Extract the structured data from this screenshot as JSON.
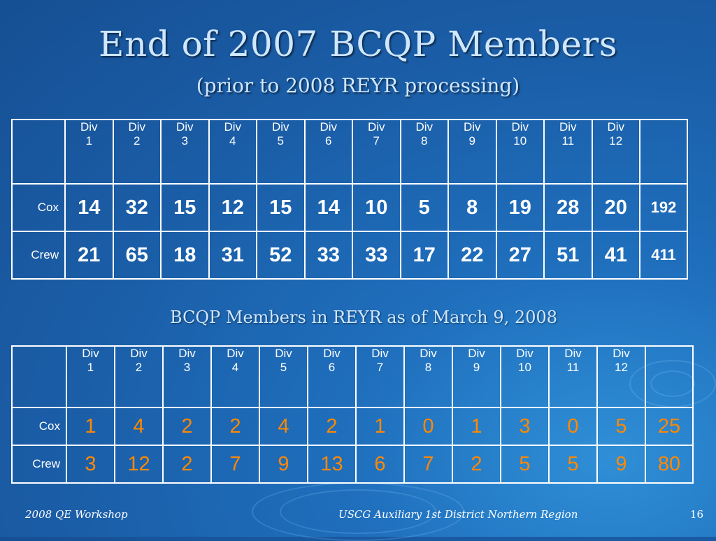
{
  "title": "End of 2007 BCQP Members",
  "subtitle": "(prior to 2008 REYR processing)",
  "table1": {
    "headers": [
      {
        "line1": "Div",
        "line2": "1"
      },
      {
        "line1": "Div",
        "line2": "2"
      },
      {
        "line1": "Div",
        "line2": "3"
      },
      {
        "line1": "Div",
        "line2": "4"
      },
      {
        "line1": "Div",
        "line2": "5"
      },
      {
        "line1": "Div",
        "line2": "6"
      },
      {
        "line1": "Div",
        "line2": "7"
      },
      {
        "line1": "Div",
        "line2": "8"
      },
      {
        "line1": "Div",
        "line2": "9"
      },
      {
        "line1": "Div",
        "line2": "10"
      },
      {
        "line1": "Div",
        "line2": "11"
      },
      {
        "line1": "Div",
        "line2": "12"
      }
    ],
    "rows": [
      {
        "label": "Cox",
        "values": [
          "14",
          "32",
          "15",
          "12",
          "15",
          "14",
          "10",
          "5",
          "8",
          "19",
          "28",
          "20"
        ],
        "total": "192"
      },
      {
        "label": "Crew",
        "values": [
          "21",
          "65",
          "18",
          "31",
          "52",
          "33",
          "33",
          "17",
          "22",
          "27",
          "51",
          "41"
        ],
        "total": "411"
      }
    ]
  },
  "section2_caption": "BCQP Members in REYR as of March 9, 2008",
  "table2": {
    "headers": [
      {
        "line1": "Div",
        "line2": "1"
      },
      {
        "line1": "Div",
        "line2": "2"
      },
      {
        "line1": "Div",
        "line2": "3"
      },
      {
        "line1": "Div",
        "line2": "4"
      },
      {
        "line1": "Div",
        "line2": "5"
      },
      {
        "line1": "Div",
        "line2": "6"
      },
      {
        "line1": "Div",
        "line2": "7"
      },
      {
        "line1": "Div",
        "line2": "8"
      },
      {
        "line1": "Div",
        "line2": "9"
      },
      {
        "line1": "Div",
        "line2": "10"
      },
      {
        "line1": "Div",
        "line2": "11"
      },
      {
        "line1": "Div",
        "line2": "12"
      }
    ],
    "rows": [
      {
        "label": "Cox",
        "values": [
          "1",
          "4",
          "2",
          "2",
          "4",
          "2",
          "1",
          "0",
          "1",
          "3",
          "0",
          "5"
        ],
        "total": "25"
      },
      {
        "label": "Crew",
        "values": [
          "3",
          "12",
          "2",
          "7",
          "9",
          "13",
          "6",
          "7",
          "2",
          "5",
          "5",
          "9"
        ],
        "total": "80"
      }
    ]
  },
  "footer": {
    "left": "2008 QE Workshop",
    "center": "USCG Auxiliary 1st District Northern Region",
    "page_number": "16"
  },
  "colors": {
    "background": "#1b5fa9",
    "title_text": "#cfe7ff",
    "table_border": "#ffffff",
    "table2_values": "#ff8800"
  }
}
